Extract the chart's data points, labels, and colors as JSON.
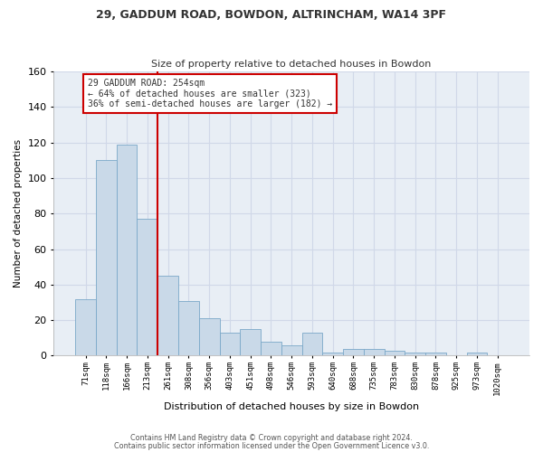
{
  "title1": "29, GADDUM ROAD, BOWDON, ALTRINCHAM, WA14 3PF",
  "title2": "Size of property relative to detached houses in Bowdon",
  "xlabel": "Distribution of detached houses by size in Bowdon",
  "ylabel": "Number of detached properties",
  "bar_labels": [
    "71sqm",
    "118sqm",
    "166sqm",
    "213sqm",
    "261sqm",
    "308sqm",
    "356sqm",
    "403sqm",
    "451sqm",
    "498sqm",
    "546sqm",
    "593sqm",
    "640sqm",
    "688sqm",
    "735sqm",
    "783sqm",
    "830sqm",
    "878sqm",
    "925sqm",
    "973sqm",
    "1020sqm"
  ],
  "bar_values": [
    32,
    110,
    119,
    77,
    45,
    31,
    21,
    13,
    15,
    8,
    6,
    13,
    2,
    4,
    4,
    3,
    2,
    2,
    0,
    2,
    0
  ],
  "bar_color": "#c9d9e8",
  "bar_edge_color": "#7aa8c8",
  "vline_color": "#cc0000",
  "annotation_text": "29 GADDUM ROAD: 254sqm\n← 64% of detached houses are smaller (323)\n36% of semi-detached houses are larger (182) →",
  "annotation_box_color": "#ffffff",
  "annotation_box_edge": "#cc0000",
  "footer1": "Contains HM Land Registry data © Crown copyright and database right 2024.",
  "footer2": "Contains public sector information licensed under the Open Government Licence v3.0.",
  "ylim": [
    0,
    160
  ],
  "yticks": [
    0,
    20,
    40,
    60,
    80,
    100,
    120,
    140,
    160
  ],
  "grid_color": "#d0d8e8",
  "background_color": "#e8eef5"
}
